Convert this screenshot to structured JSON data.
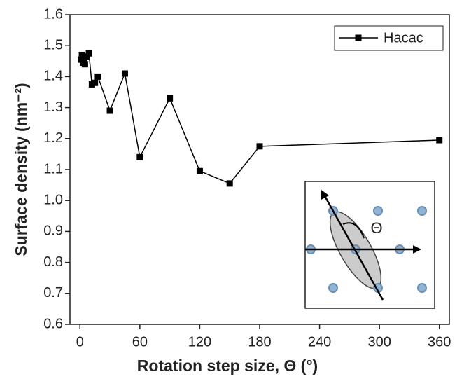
{
  "chart_data": {
    "type": "line",
    "x": [
      1,
      2,
      3,
      4,
      5,
      6,
      9,
      12,
      15,
      18,
      30,
      45,
      60,
      90,
      120,
      150,
      180,
      360
    ],
    "series": [
      {
        "name": "Hacac",
        "color": "#000000",
        "values": [
          1.455,
          1.47,
          1.445,
          1.46,
          1.44,
          1.465,
          1.475,
          1.375,
          1.38,
          1.4,
          1.29,
          1.41,
          1.14,
          1.33,
          1.095,
          1.055,
          1.175,
          1.195
        ]
      }
    ],
    "xlabel": "Rotation step size, Θ (°)",
    "ylabel": "Surface density (nm⁻²)",
    "xlim": [
      -10,
      370
    ],
    "xticks": [
      0,
      60,
      120,
      180,
      240,
      300,
      360
    ],
    "ylim": [
      0.6,
      1.6
    ],
    "yticks": [
      0.6,
      0.7,
      0.8,
      0.9,
      {
        "value": 1,
        "label": "1.0"
      },
      1.1,
      1.2,
      1.3,
      1.4,
      1.5,
      1.6
    ],
    "legend": "upper right",
    "annotations": [
      "Θ"
    ]
  }
}
